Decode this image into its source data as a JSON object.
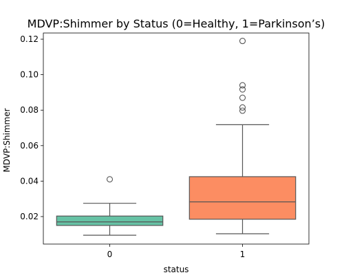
{
  "chart_data": {
    "type": "box",
    "title": "MDVP:Shimmer by Status (0=Healthy, 1=Parkinson’s)",
    "xlabel": "status",
    "ylabel": "MDVP:Shimmer",
    "categories": [
      "0",
      "1"
    ],
    "ylim": [
      0.0045,
      0.1235
    ],
    "yticks": [
      0.02,
      0.04,
      0.06,
      0.08,
      0.1,
      0.12
    ],
    "ytick_labels": [
      "0.02",
      "0.04",
      "0.06",
      "0.08",
      "0.10",
      "0.12"
    ],
    "grid": false,
    "boxes": [
      {
        "category": "0",
        "color": "#66c2a5",
        "whisker_low": 0.0095,
        "q1": 0.015,
        "median": 0.017,
        "q3": 0.0203,
        "whisker_high": 0.0275,
        "outliers": [
          0.041
        ]
      },
      {
        "category": "1",
        "color": "#fc8d62",
        "whisker_low": 0.0103,
        "q1": 0.0185,
        "median": 0.0283,
        "q3": 0.0425,
        "whisker_high": 0.0718,
        "outliers": [
          0.0797,
          0.0815,
          0.087,
          0.0917,
          0.094,
          0.119
        ]
      }
    ]
  }
}
